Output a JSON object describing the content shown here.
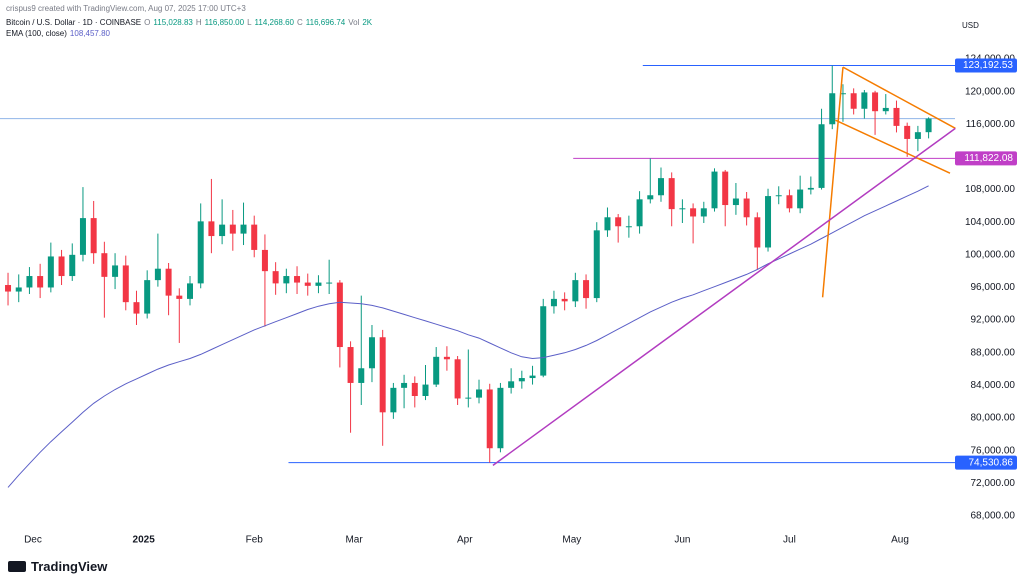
{
  "header": {
    "credit": "crispus9 created with TradingView.com, Aug 07, 2025 17:00 UTC+3",
    "symbol": "Bitcoin / U.S. Dollar · 1D · COINBASE",
    "ohlc": [
      {
        "key": "O",
        "text": "115,028.83"
      },
      {
        "key": "H",
        "text": "116,850.00"
      },
      {
        "key": "L",
        "text": "114,268.60"
      },
      {
        "key": "C",
        "text": "116,696.74"
      }
    ],
    "volume_key": "Vol",
    "volume": "2K",
    "currency": "USD",
    "brand": "TradingView"
  },
  "chart_data": {
    "type": "candlestick",
    "up_color": "#089981",
    "down_color": "#f23645",
    "open": [
      96300,
      95500,
      96000,
      97400,
      96000,
      99800,
      97400,
      100000,
      104500,
      100200,
      97300,
      98700,
      94200,
      92800,
      96900,
      98300,
      95000,
      94600,
      96500,
      104100,
      102300,
      103700,
      102600,
      103700,
      100600,
      98000,
      96500,
      97400,
      96600,
      96200,
      96600,
      96600,
      88700,
      84300,
      86100,
      89900,
      80700,
      83700,
      84300,
      82700,
      84100,
      87500,
      87200,
      82400,
      82500,
      83500,
      76300,
      83700,
      84500,
      84900,
      85200,
      93700,
      94600,
      94300,
      96900,
      94700,
      103000,
      104600,
      103500,
      103500,
      106800,
      107300,
      109400,
      105600,
      105700,
      104700,
      105700,
      110200,
      106100,
      106900,
      104600,
      100900,
      107200,
      107300,
      105700,
      108000,
      108200,
      116000,
      119800,
      119800,
      117900,
      119900,
      117600,
      118000,
      115800,
      114200,
      115028.83
    ],
    "high": [
      97800,
      97600,
      98500,
      98900,
      101500,
      100600,
      101400,
      108300,
      106600,
      101600,
      100200,
      99900,
      95600,
      98100,
      102600,
      99000,
      95900,
      97400,
      106300,
      109300,
      106800,
      105500,
      106400,
      104800,
      102500,
      99100,
      98300,
      98600,
      97700,
      97500,
      99400,
      96900,
      89400,
      95000,
      91400,
      90800,
      84300,
      85300,
      85100,
      86500,
      88700,
      88800,
      87600,
      88400,
      84700,
      84200,
      84300,
      86100,
      85800,
      86400,
      94600,
      95600,
      95400,
      97800,
      97600,
      104000,
      105800,
      105000,
      104800,
      107800,
      111800,
      110700,
      110100,
      106800,
      106300,
      106500,
      110600,
      110400,
      108800,
      107700,
      105200,
      108100,
      108400,
      108000,
      109700,
      109600,
      117900,
      123192.53,
      120900,
      120400,
      120200,
      120100,
      119700,
      118900,
      116200,
      115800,
      116850
    ],
    "low": [
      93800,
      94200,
      95200,
      94700,
      95400,
      96300,
      96800,
      99200,
      98900,
      92300,
      95800,
      93200,
      91400,
      92200,
      96100,
      92600,
      89200,
      93800,
      95900,
      100200,
      101300,
      100500,
      101200,
      99700,
      91200,
      95100,
      95300,
      95200,
      95000,
      95300,
      95200,
      86200,
      78200,
      81600,
      84400,
      76600,
      79900,
      81200,
      81300,
      82200,
      83800,
      85800,
      81600,
      81300,
      81800,
      74530.86,
      75800,
      83000,
      83600,
      84100,
      85000,
      92800,
      93200,
      93600,
      93400,
      94200,
      102200,
      101500,
      102100,
      102600,
      106300,
      106500,
      103500,
      103900,
      101400,
      103900,
      105300,
      103500,
      104900,
      103600,
      98200,
      100400,
      106200,
      105200,
      105100,
      107400,
      108000,
      115400,
      116300,
      117200,
      116700,
      114700,
      117200,
      115000,
      112000,
      112700,
      114268.6
    ],
    "close": [
      95500,
      96000,
      97400,
      96000,
      99800,
      97400,
      100000,
      104500,
      100200,
      97300,
      98700,
      94200,
      92800,
      96900,
      98300,
      95000,
      94600,
      96500,
      104100,
      102300,
      103700,
      102600,
      103700,
      100600,
      98000,
      96500,
      97400,
      96600,
      96200,
      96600,
      96600,
      88700,
      84300,
      86100,
      89900,
      80700,
      83700,
      84300,
      82700,
      84100,
      87500,
      87200,
      82400,
      82500,
      83500,
      76300,
      83700,
      84500,
      84900,
      85200,
      93700,
      94600,
      94300,
      96900,
      94700,
      103000,
      104600,
      103500,
      103500,
      106800,
      107300,
      109400,
      105600,
      105700,
      104700,
      105700,
      110200,
      106100,
      106900,
      104600,
      100900,
      107200,
      107300,
      105700,
      108000,
      108200,
      116000,
      119800,
      119800,
      117900,
      119900,
      117600,
      118000,
      115800,
      114200,
      115028.83,
      116696.74
    ],
    "ema": {
      "name": "EMA (100, close)",
      "color": "#5b5fc7",
      "value_label": "108,457.80",
      "values": [
        71500,
        73000,
        74400,
        75800,
        77100,
        78300,
        79500,
        80700,
        81800,
        82700,
        83500,
        84200,
        84800,
        85400,
        86000,
        86500,
        86900,
        87300,
        87800,
        88400,
        89000,
        89600,
        90200,
        90800,
        91300,
        91800,
        92300,
        92800,
        93300,
        93700,
        94000,
        94200,
        94100,
        94000,
        93800,
        93500,
        93100,
        92700,
        92300,
        91900,
        91500,
        91100,
        90700,
        90200,
        89800,
        89200,
        88600,
        88000,
        87500,
        87300,
        87400,
        87700,
        88000,
        88400,
        88900,
        89500,
        90200,
        90900,
        91600,
        92300,
        93000,
        93600,
        94200,
        94700,
        95100,
        95600,
        96100,
        96600,
        97100,
        97600,
        98200,
        98900,
        99500,
        100100,
        100700,
        101300,
        102000,
        102700,
        103400,
        104100,
        104800,
        105400,
        106000,
        106600,
        107200,
        107800,
        108457.8
      ]
    },
    "xlim": [
      -0.75,
      88
    ],
    "xticks": [
      {
        "value": 2.33,
        "label": "Dec"
      },
      {
        "value": 12.67,
        "label": "2025"
      },
      {
        "value": 23,
        "label": "Feb"
      },
      {
        "value": 32.33,
        "label": "Mar"
      },
      {
        "value": 42.67,
        "label": "Apr"
      },
      {
        "value": 52.67,
        "label": "May"
      },
      {
        "value": 63,
        "label": "Jun"
      },
      {
        "value": 73,
        "label": "Jul"
      },
      {
        "value": 83.33,
        "label": "Aug"
      }
    ],
    "ylim": [
      66280,
      127550
    ],
    "yticks": [
      {
        "value": 68000,
        "label": "68,000.00"
      },
      {
        "value": 72000,
        "label": "72,000.00"
      },
      {
        "value": 76000,
        "label": "76,000.00"
      },
      {
        "value": 80000,
        "label": "80,000.00"
      },
      {
        "value": 84000,
        "label": "84,000.00"
      },
      {
        "value": 88000,
        "label": "88,000.00"
      },
      {
        "value": 92000,
        "label": "92,000.00"
      },
      {
        "value": 96000,
        "label": "96,000.00"
      },
      {
        "value": 100000,
        "label": "100,000.00"
      },
      {
        "value": 104000,
        "label": "104,000.00"
      },
      {
        "value": 108000,
        "label": "108,000.00"
      },
      {
        "value": 112000,
        "label": "112,000.00"
      },
      {
        "value": 116000,
        "label": "116,000.00"
      },
      {
        "value": 120000,
        "label": "120,000.00"
      },
      {
        "value": 124000,
        "label": "124,000.00"
      }
    ],
    "hlines": [
      {
        "value": 123192.53,
        "label": "123,192.53",
        "color": "#2962ff",
        "from": 59.3
      },
      {
        "value": 116696.74,
        "color": "#90b4e8",
        "from": -0.75
      },
      {
        "value": 111822.08,
        "label": "111,822.08",
        "color": "#c03fc7",
        "from": 52.8
      },
      {
        "value": 74530.86,
        "label": "74,530.86",
        "color": "#2962ff",
        "from": 26.2
      }
    ],
    "trendlines": [
      {
        "color": "#f57c00",
        "points": [
          [
            76.1,
            94800
          ],
          [
            78.0,
            123000
          ]
        ]
      },
      {
        "color": "#f57c00",
        "points": [
          [
            78.0,
            123000
          ],
          [
            88.5,
            115500
          ]
        ]
      },
      {
        "color": "#f57c00",
        "points": [
          [
            77.3,
            116500
          ],
          [
            88.0,
            110000
          ]
        ]
      },
      {
        "color": "#b23cc0",
        "points": [
          [
            45.3,
            74200
          ],
          [
            88.5,
            115500
          ]
        ]
      }
    ]
  }
}
